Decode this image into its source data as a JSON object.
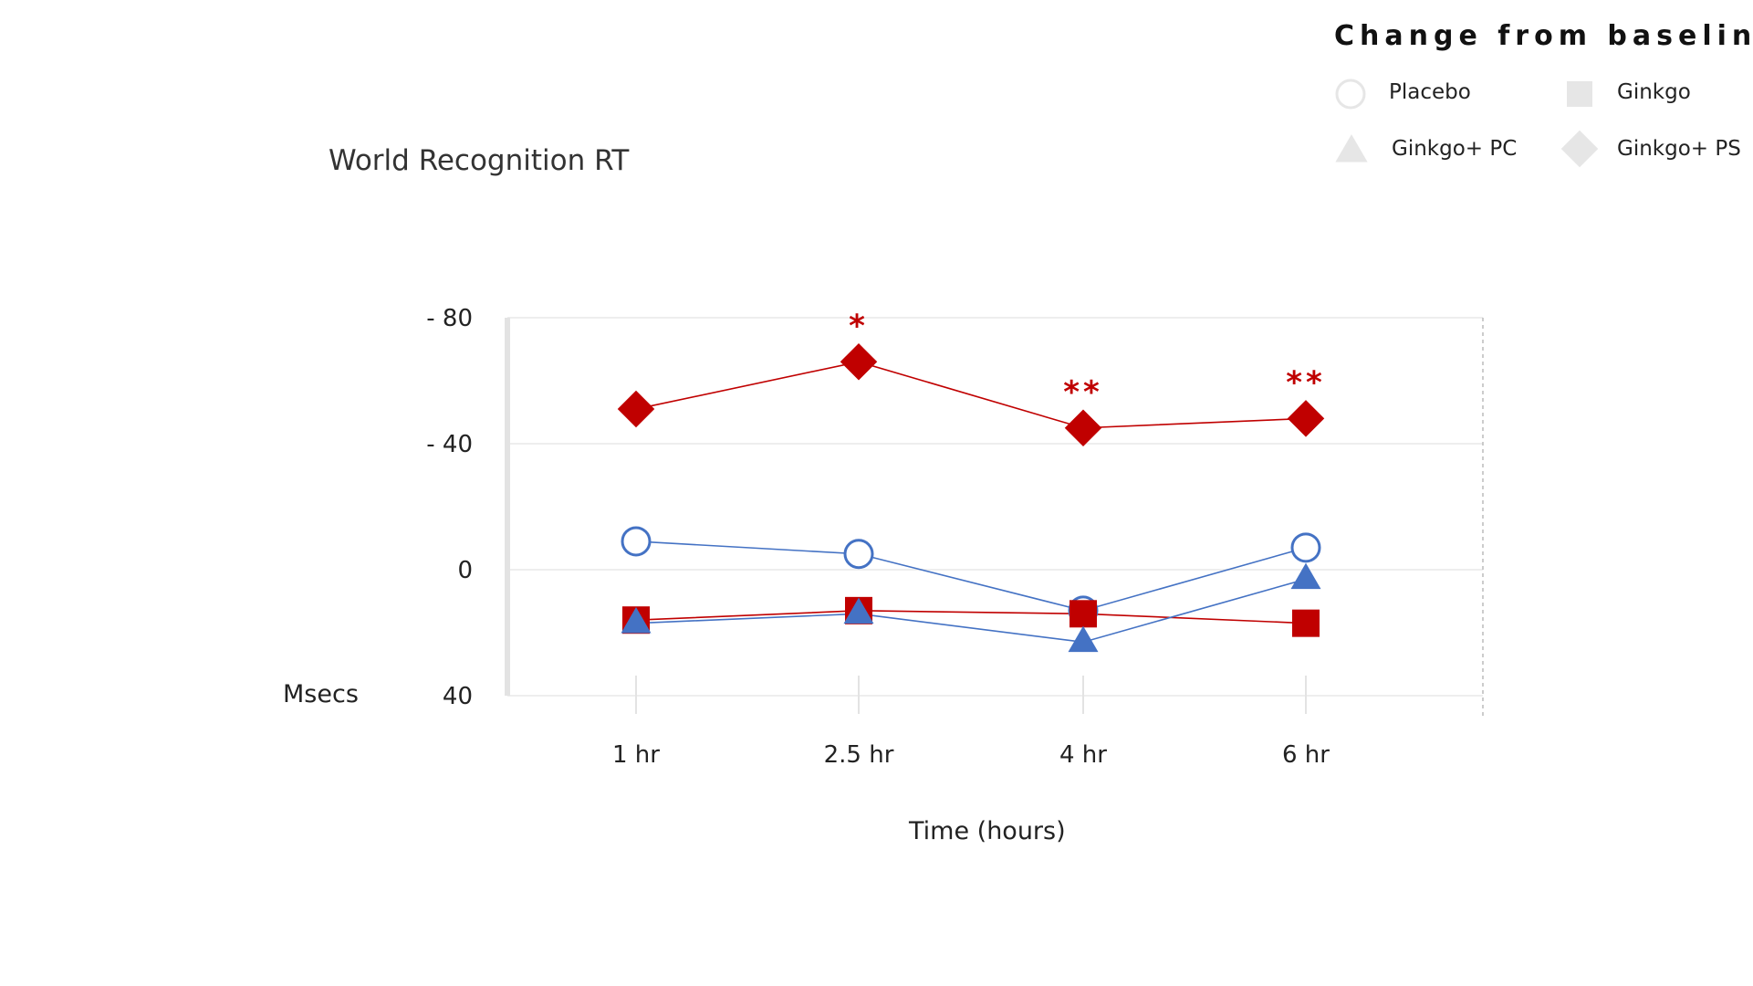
{
  "legend": {
    "title": "Change from baseline",
    "items": [
      {
        "label": "Placebo",
        "shape": "circle"
      },
      {
        "label": "Ginkgo",
        "shape": "square"
      },
      {
        "label": "Ginkgo+ PC",
        "shape": "triangle"
      },
      {
        "label": "Ginkgo+ PS",
        "shape": "diamond"
      }
    ]
  },
  "chart_data": {
    "type": "line",
    "title": "World Recognition RT",
    "xlabel": "Time (hours)",
    "ylabel": "Msecs",
    "categories": [
      "1 hr",
      "2.5 hr",
      "4 hr",
      "6 hr"
    ],
    "yaxis_ticks": [
      {
        "value": -80,
        "label": "- 80"
      },
      {
        "value": -40,
        "label": "- 40"
      },
      {
        "value": 0,
        "label": "0"
      },
      {
        "value": 40,
        "label": "40"
      }
    ],
    "ylim": [
      40,
      -80
    ],
    "y_inverted": true,
    "series": [
      {
        "name": "Placebo",
        "shape": "circle",
        "filled": false,
        "color": "#4472c4",
        "values": [
          -9,
          -5,
          13,
          -7
        ]
      },
      {
        "name": "Ginkgo",
        "shape": "square",
        "filled": true,
        "color": "#c00000",
        "values": [
          16,
          13,
          14,
          17
        ]
      },
      {
        "name": "Ginkgo+ PC",
        "shape": "triangle",
        "filled": true,
        "color": "#4472c4",
        "values": [
          17,
          14,
          23,
          3
        ]
      },
      {
        "name": "Ginkgo+ PS",
        "shape": "diamond",
        "filled": true,
        "color": "#c00000",
        "values": [
          -51,
          -66,
          -45,
          -48
        ]
      }
    ],
    "annotations": [
      {
        "category": "2.5 hr",
        "text": "*"
      },
      {
        "category": "4 hr",
        "text": "**"
      },
      {
        "category": "6 hr",
        "text": "**"
      }
    ],
    "colors": {
      "blue": "#4472c4",
      "red": "#c00000",
      "legend_gray": "#e6e6e6",
      "grid": "#eeeeee"
    }
  }
}
